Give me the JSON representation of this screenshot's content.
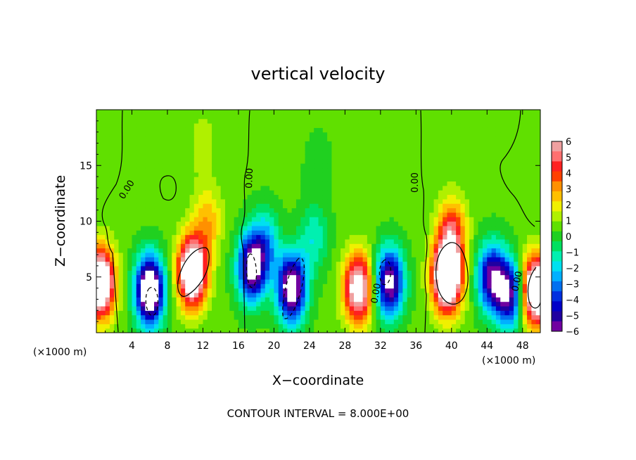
{
  "chart_data": {
    "type": "heatmap",
    "title": "vertical velocity",
    "xlabel": "X−coordinate",
    "ylabel": "Z−coordinate",
    "x_unit_left": "(×1000 m)",
    "x_unit_right": "(×1000 m)",
    "footer": "CONTOUR INTERVAL = 8.000E+00",
    "xlim": [
      0,
      50
    ],
    "ylim": [
      0,
      20
    ],
    "x_ticks": [
      4,
      8,
      12,
      16,
      20,
      24,
      28,
      32,
      36,
      40,
      44,
      48
    ],
    "x_tick_labels": [
      "4",
      "8",
      "12",
      "16",
      "20",
      "24",
      "28",
      "32",
      "36",
      "40",
      "44",
      "48"
    ],
    "y_ticks": [
      5,
      10,
      15
    ],
    "y_tick_labels": [
      "5",
      "10",
      "15"
    ],
    "contour_labels": [
      "0.00",
      "0.00",
      "0.00",
      "0.00",
      "0.00"
    ],
    "colorbar": {
      "range": [
        -6,
        6
      ],
      "labels": [
        "6",
        "5",
        "4",
        "3",
        "2",
        "1",
        "0",
        "−1",
        "−2",
        "−3",
        "−4",
        "−5",
        "−6"
      ],
      "colors": [
        "#f0a0a0",
        "#ff7070",
        "#ff2020",
        "#ff4000",
        "#ff9000",
        "#ffc000",
        "#f0f000",
        "#b0f000",
        "#60e000",
        "#20d020",
        "#00e060",
        "#00f0b0",
        "#00e0f0",
        "#00b0ff",
        "#0070f0",
        "#0030e0",
        "#0000c8",
        "#2000a0",
        "#7000a0"
      ]
    },
    "background_value": 0.5,
    "features": [
      {
        "x": 0.4,
        "z": 4.5,
        "amp": 9
      },
      {
        "x": 6.0,
        "z": 3.8,
        "amp": -9
      },
      {
        "x": 10.8,
        "z": 5.5,
        "amp": 9
      },
      {
        "x": 12.5,
        "z": 10.0,
        "amp": 2.2
      },
      {
        "x": 17.5,
        "z": 5.8,
        "amp": -7
      },
      {
        "x": 19.0,
        "z": 8.0,
        "amp": -3
      },
      {
        "x": 22.0,
        "z": 4.0,
        "amp": -8
      },
      {
        "x": 24.5,
        "z": 8.5,
        "amp": -2
      },
      {
        "x": 29.5,
        "z": 4.0,
        "amp": 7
      },
      {
        "x": 33.0,
        "z": 4.5,
        "amp": -7
      },
      {
        "x": 39.5,
        "z": 5.0,
        "amp": 10
      },
      {
        "x": 40.0,
        "z": 9.0,
        "amp": 4
      },
      {
        "x": 44.5,
        "z": 5.0,
        "amp": -6
      },
      {
        "x": 46.5,
        "z": 3.5,
        "amp": -6
      },
      {
        "x": 49.5,
        "z": 3.8,
        "amp": 9
      },
      {
        "x": 12.0,
        "z": 17.0,
        "amp": 0.8
      },
      {
        "x": 25.0,
        "z": 15.0,
        "amp": -0.6
      }
    ]
  }
}
